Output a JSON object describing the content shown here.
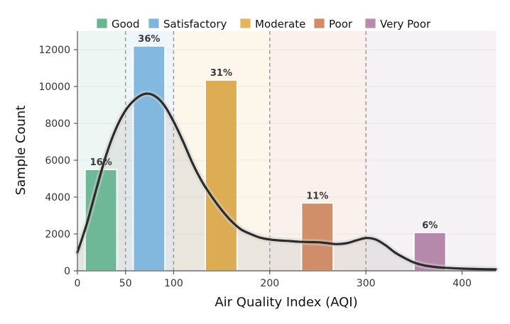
{
  "chart_data": {
    "type": "bar",
    "title": "",
    "xlabel": "Air Quality Index (AQI)",
    "ylabel": "Sample Count",
    "xlim": [
      0,
      435
    ],
    "ylim": [
      0,
      13000
    ],
    "xticks": [
      0,
      50,
      100,
      200,
      300,
      400
    ],
    "yticks": [
      0,
      2000,
      4000,
      6000,
      8000,
      10000,
      12000
    ],
    "grid": true,
    "legend_position": "top",
    "category_bands": [
      {
        "name": "Good",
        "start": 0,
        "end": 50,
        "color": "#67b592"
      },
      {
        "name": "Satisfactory",
        "start": 50,
        "end": 100,
        "color": "#7cb5dd"
      },
      {
        "name": "Moderate",
        "start": 100,
        "end": 200,
        "color": "#e4b55c"
      },
      {
        "name": "Poor",
        "start": 200,
        "end": 300,
        "color": "#d48a66"
      },
      {
        "name": "Very Poor",
        "start": 300,
        "end": 435,
        "color": "#b78aae"
      }
    ],
    "bars": [
      {
        "category": "Good",
        "x_start": 8,
        "x_end": 41,
        "value": 5500,
        "label": "16%",
        "color": "#67b592"
      },
      {
        "category": "Satisfactory",
        "x_start": 58,
        "x_end": 91,
        "value": 12200,
        "label": "36%",
        "color": "#7cb5dd"
      },
      {
        "category": "Moderate",
        "x_start": 133,
        "x_end": 166,
        "value": 10350,
        "label": "31%",
        "color": "#dba94c"
      },
      {
        "category": "Poor",
        "x_start": 233,
        "x_end": 266,
        "value": 3680,
        "label": "11%",
        "color": "#cd8862"
      },
      {
        "category": "Very Poor",
        "x_start": 350,
        "x_end": 383,
        "value": 2080,
        "label": "6%",
        "color": "#b283a8"
      }
    ],
    "dividers": [
      50,
      100,
      200,
      300
    ],
    "density_curve": {
      "x": [
        0,
        10,
        20,
        30,
        40,
        50,
        60,
        70,
        80,
        90,
        100,
        110,
        120,
        130,
        140,
        150,
        160,
        170,
        180,
        190,
        200,
        210,
        220,
        230,
        240,
        250,
        260,
        270,
        280,
        290,
        300,
        310,
        320,
        330,
        340,
        350,
        360,
        370,
        380,
        400,
        420,
        435
      ],
      "y": [
        1000,
        2600,
        4500,
        6300,
        7700,
        8700,
        9300,
        9600,
        9500,
        9000,
        8100,
        7000,
        5800,
        4800,
        4000,
        3300,
        2700,
        2250,
        2000,
        1800,
        1700,
        1650,
        1620,
        1580,
        1560,
        1550,
        1500,
        1450,
        1500,
        1650,
        1780,
        1700,
        1400,
        1000,
        700,
        450,
        300,
        220,
        170,
        120,
        90,
        80
      ]
    }
  },
  "legend": {
    "items": [
      {
        "label": "Good",
        "color": "#67b592"
      },
      {
        "label": "Satisfactory",
        "color": "#7cb5dd"
      },
      {
        "label": "Moderate",
        "color": "#e4b55c"
      },
      {
        "label": "Poor",
        "color": "#d48a66"
      },
      {
        "label": "Very Poor",
        "color": "#b78aae"
      }
    ]
  }
}
